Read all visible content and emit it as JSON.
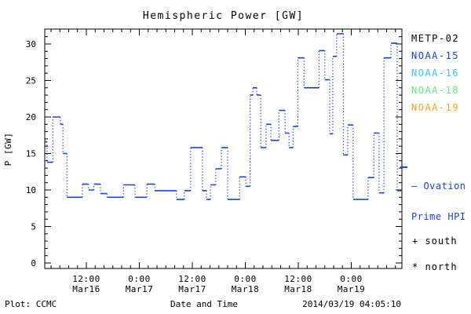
{
  "title": "Hemispheric Power [GW]",
  "legend": {
    "items": [
      {
        "label": "METP-02",
        "color": "#000000"
      },
      {
        "label": "NOAA-15",
        "color": "#1d44d4"
      },
      {
        "label": "NOAA-16",
        "color": "#3cc3f0"
      },
      {
        "label": "NOAA-18",
        "color": "#5fe87f"
      },
      {
        "label": "NOAA-19",
        "color": "#ffa526"
      }
    ]
  },
  "note": {
    "lines": [
      "– Ovation",
      "Prime HPI"
    ],
    "color": "#1d44d4"
  },
  "markers": {
    "south": "+ south",
    "north": "* north"
  },
  "footer": {
    "left": "Plot: CCMC",
    "center": "Date and Time",
    "right": "2014/03/19 04:05:10"
  },
  "chart_data": {
    "type": "line",
    "subtype": "step-post",
    "title": "Hemispheric Power [GW]",
    "xlabel": "Date and Time",
    "ylabel": "P [GW]",
    "ylim": [
      0,
      32
    ],
    "yticks": [
      0,
      5,
      10,
      15,
      20,
      25,
      30
    ],
    "y_minor_step": 1,
    "x_unit": "hours since 2014-03-16 00:00 UT",
    "x_minor_step_hours": 2,
    "x_axis": {
      "major_ticks": [
        {
          "x": 12,
          "time": "12:00",
          "date": "Mar16"
        },
        {
          "x": 24,
          "time": "0:00",
          "date": "Mar17"
        },
        {
          "x": 36,
          "time": "12:00",
          "date": "Mar17"
        },
        {
          "x": 48,
          "time": "0:00",
          "date": "Mar18"
        },
        {
          "x": 60,
          "time": "12:00",
          "date": "Mar18"
        },
        {
          "x": 72,
          "time": "0:00",
          "date": "Mar19"
        }
      ]
    },
    "series": [
      {
        "name": "Ovation Prime HPI (NOAA-15)",
        "color": "#1d44d4",
        "style": "solid horizontals, dotted verticals",
        "end_x": 83.3,
        "points": [
          [
            2.6,
            16.6
          ],
          [
            3.1,
            13.8
          ],
          [
            4.4,
            20.0
          ],
          [
            6.1,
            19.0
          ],
          [
            6.7,
            15.0
          ],
          [
            7.6,
            9.0
          ],
          [
            11.1,
            10.8
          ],
          [
            12.5,
            10.0
          ],
          [
            13.7,
            10.8
          ],
          [
            15.2,
            9.5
          ],
          [
            16.7,
            9.0
          ],
          [
            20.4,
            10.7
          ],
          [
            23.0,
            9.0
          ],
          [
            25.7,
            10.8
          ],
          [
            27.5,
            9.9
          ],
          [
            32.4,
            8.7
          ],
          [
            34.2,
            9.9
          ],
          [
            35.6,
            15.8
          ],
          [
            38.3,
            9.9
          ],
          [
            39.2,
            8.7
          ],
          [
            40.1,
            10.7
          ],
          [
            41.3,
            12.9
          ],
          [
            42.6,
            15.8
          ],
          [
            44.0,
            8.7
          ],
          [
            46.7,
            11.8
          ],
          [
            48.1,
            10.5
          ],
          [
            49.1,
            23.0
          ],
          [
            49.7,
            24.0
          ],
          [
            50.6,
            23.0
          ],
          [
            51.5,
            15.8
          ],
          [
            52.7,
            19.0
          ],
          [
            53.8,
            16.8
          ],
          [
            55.6,
            20.9
          ],
          [
            57.0,
            17.8
          ],
          [
            57.9,
            15.8
          ],
          [
            58.8,
            18.7
          ],
          [
            59.9,
            28.1
          ],
          [
            61.3,
            24.0
          ],
          [
            64.7,
            29.1
          ],
          [
            66.0,
            25.1
          ],
          [
            67.1,
            17.7
          ],
          [
            67.8,
            28.3
          ],
          [
            68.7,
            31.4
          ],
          [
            70.2,
            14.8
          ],
          [
            71.2,
            18.9
          ],
          [
            72.4,
            8.7
          ],
          [
            75.8,
            11.7
          ],
          [
            77.1,
            17.8
          ],
          [
            78.3,
            9.6
          ],
          [
            79.4,
            28.1
          ],
          [
            81.0,
            30.1
          ],
          [
            82.4,
            9.9
          ]
        ]
      }
    ]
  }
}
